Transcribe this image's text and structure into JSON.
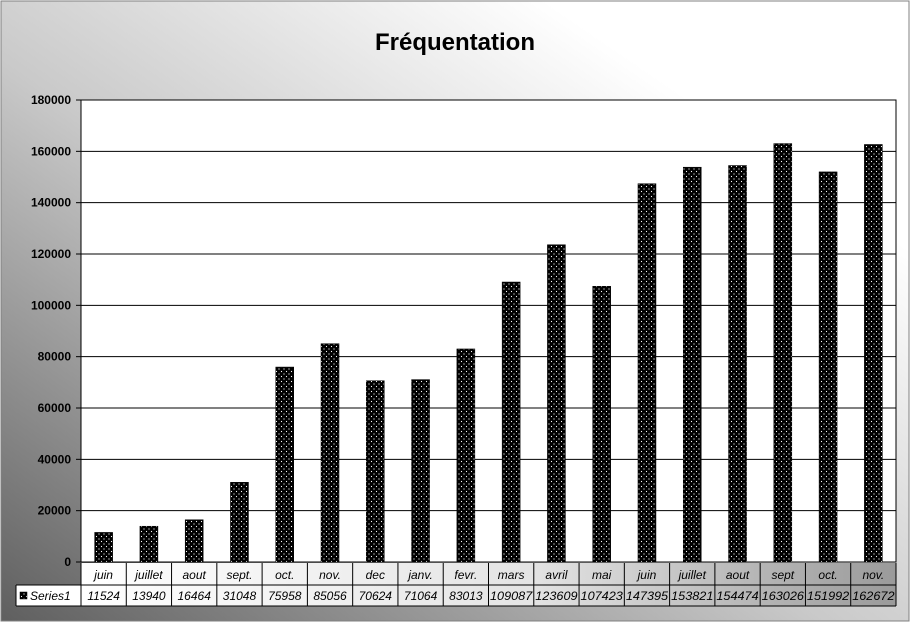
{
  "chart_data": {
    "type": "bar",
    "title": "Fréquentation",
    "xlabel": "",
    "ylabel": "",
    "categories": [
      "juin",
      "juillet",
      "aout",
      "sept.",
      "oct.",
      "nov.",
      "dec",
      "janv.",
      "fevr.",
      "mars",
      "avril",
      "mai",
      "juin",
      "juillet",
      "aout",
      "sept",
      "oct.",
      "nov."
    ],
    "series": [
      {
        "name": "Series1",
        "values": [
          11524,
          13940,
          16464,
          31048,
          75958,
          85056,
          70624,
          71064,
          83013,
          109087,
          123609,
          107423,
          147395,
          153821,
          154474,
          163026,
          151992,
          162672
        ]
      }
    ],
    "value_labels": [
      "11524",
      "13940",
      "16464",
      "31048",
      "75958",
      "85056",
      "70624",
      "71064",
      "83013",
      "109087",
      "123609",
      "107423",
      "147395",
      "153821",
      "154474",
      "163026",
      "151992",
      "162672"
    ],
    "ylim": [
      0,
      180000
    ],
    "yticks": [
      0,
      20000,
      40000,
      60000,
      80000,
      100000,
      120000,
      140000,
      160000,
      180000
    ],
    "ytick_labels": [
      "0",
      "20000",
      "40000",
      "60000",
      "80000",
      "100000",
      "120000",
      "140000",
      "160000",
      "180000"
    ],
    "grid": true,
    "legend": "data-table",
    "colors": {
      "bar": "#000000",
      "bar_dots": "#ffffff",
      "plot_bg": "#ffffff",
      "bg_dark": "#6e6e6e",
      "bg_light": "#ffffff"
    }
  }
}
